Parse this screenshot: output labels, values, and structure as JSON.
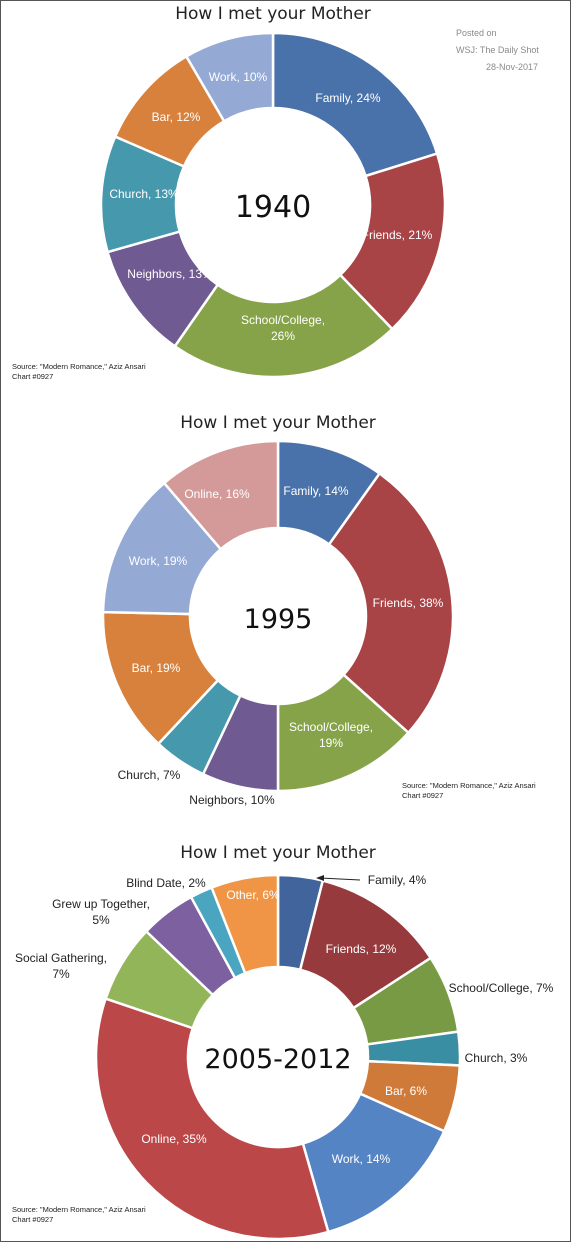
{
  "posted": {
    "line1": "Posted on",
    "line2": "WSJ: The Daily Shot",
    "line3": "28-Nov-2017"
  },
  "chart_data": [
    {
      "type": "pie",
      "title": "How I met your Mother",
      "center_label": "1940",
      "source": "Source: \"Modern Romance,\" Aziz Ansari",
      "chart_id": "Chart #0927",
      "slices": [
        {
          "name": "Family",
          "value": 24,
          "label": "Family, 24%",
          "color": "#4a72aa"
        },
        {
          "name": "Friends",
          "value": 21,
          "label": "Friends, 21%",
          "color": "#a84346"
        },
        {
          "name": "School/College",
          "value": 26,
          "label": "School/College, 26%",
          "color": "#86a34a"
        },
        {
          "name": "Neighbors",
          "value": 13,
          "label": "Neighbors, 13%",
          "color": "#705a92"
        },
        {
          "name": "Church",
          "value": 13,
          "label": "Church, 13%",
          "color": "#4698ad"
        },
        {
          "name": "Bar",
          "value": 12,
          "label": "Bar, 12%",
          "color": "#d8813d"
        },
        {
          "name": "Work",
          "value": 10,
          "label": "Work, 10%",
          "color": "#94a9d4"
        }
      ]
    },
    {
      "type": "pie",
      "title": "How I met your Mother",
      "center_label": "1995",
      "source": "Source: \"Modern Romance,\" Aziz Ansari",
      "chart_id": "Chart #0927",
      "slices": [
        {
          "name": "Family",
          "value": 14,
          "label": "Family, 14%",
          "color": "#4a72aa"
        },
        {
          "name": "Friends",
          "value": 38,
          "label": "Friends, 38%",
          "color": "#a84346"
        },
        {
          "name": "School/College",
          "value": 19,
          "label": "School/College, 19%",
          "color": "#86a34a"
        },
        {
          "name": "Neighbors",
          "value": 10,
          "label": "Neighbors, 10%",
          "color": "#705a92"
        },
        {
          "name": "Church",
          "value": 7,
          "label": "Church, 7%",
          "color": "#4698ad"
        },
        {
          "name": "Bar",
          "value": 19,
          "label": "Bar, 19%",
          "color": "#d8813d"
        },
        {
          "name": "Work",
          "value": 19,
          "label": "Work, 19%",
          "color": "#94a9d4"
        },
        {
          "name": "Online",
          "value": 16,
          "label": "Online, 16%",
          "color": "#d39a99"
        }
      ]
    },
    {
      "type": "pie",
      "title": "How I met your Mother",
      "center_label": "2005-2012",
      "source": "Source: \"Modern Romance,\" Aziz Ansari",
      "chart_id": "Chart #0927",
      "slices": [
        {
          "name": "Family",
          "value": 4,
          "label": "Family, 4%",
          "color": "#42649c"
        },
        {
          "name": "Friends",
          "value": 12,
          "label": "Friends, 12%",
          "color": "#963a3d"
        },
        {
          "name": "School/College",
          "value": 7,
          "label": "School/College, 7%",
          "color": "#789a45"
        },
        {
          "name": "Church",
          "value": 3,
          "label": "Church, 3%",
          "color": "#3a8ea3"
        },
        {
          "name": "Bar",
          "value": 6,
          "label": "Bar, 6%",
          "color": "#d07a39"
        },
        {
          "name": "Work",
          "value": 14,
          "label": "Work, 14%",
          "color": "#5484c4"
        },
        {
          "name": "Online",
          "value": 35,
          "label": "Online, 35%",
          "color": "#bb4748"
        },
        {
          "name": "Social Gathering",
          "value": 7,
          "label": "Social Gathering, 7%",
          "color": "#93b55a"
        },
        {
          "name": "Grew up Together",
          "value": 5,
          "label": "Grew up Together, 5%",
          "color": "#7c60a0"
        },
        {
          "name": "Blind Date",
          "value": 2,
          "label": "Blind Date, 2%",
          "color": "#4aa6c0"
        },
        {
          "name": "Other",
          "value": 6,
          "label": "Other, 6%",
          "color": "#f09446"
        }
      ]
    }
  ]
}
